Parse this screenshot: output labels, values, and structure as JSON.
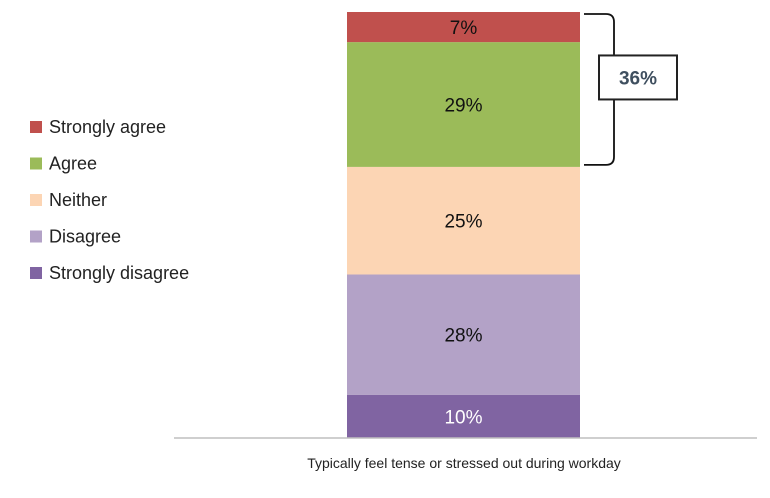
{
  "chart_data": {
    "type": "bar",
    "stacked": true,
    "orientation": "vertical",
    "categories": [
      "Typically feel tense or stressed out during workday"
    ],
    "series": [
      {
        "name": "Strongly disagree",
        "values": [
          10
        ],
        "label": "10%",
        "color": "#8064a2",
        "label_color": "#ffffff"
      },
      {
        "name": "Disagree",
        "values": [
          28
        ],
        "label": "28%",
        "color": "#b3a2c7",
        "label_color": "#111111"
      },
      {
        "name": "Neither",
        "values": [
          25
        ],
        "label": "25%",
        "color": "#fcd5b4",
        "label_color": "#111111"
      },
      {
        "name": "Agree",
        "values": [
          29
        ],
        "label": "29%",
        "color": "#9bbb59",
        "label_color": "#111111"
      },
      {
        "name": "Strongly agree",
        "values": [
          7
        ],
        "label": "7%",
        "color": "#c0504d",
        "label_color": "#111111"
      }
    ],
    "ylim": [
      0,
      100
    ],
    "grid": false,
    "legend_position": "left",
    "annotation": {
      "text": "36%",
      "spans": [
        "Agree",
        "Strongly agree"
      ]
    }
  }
}
